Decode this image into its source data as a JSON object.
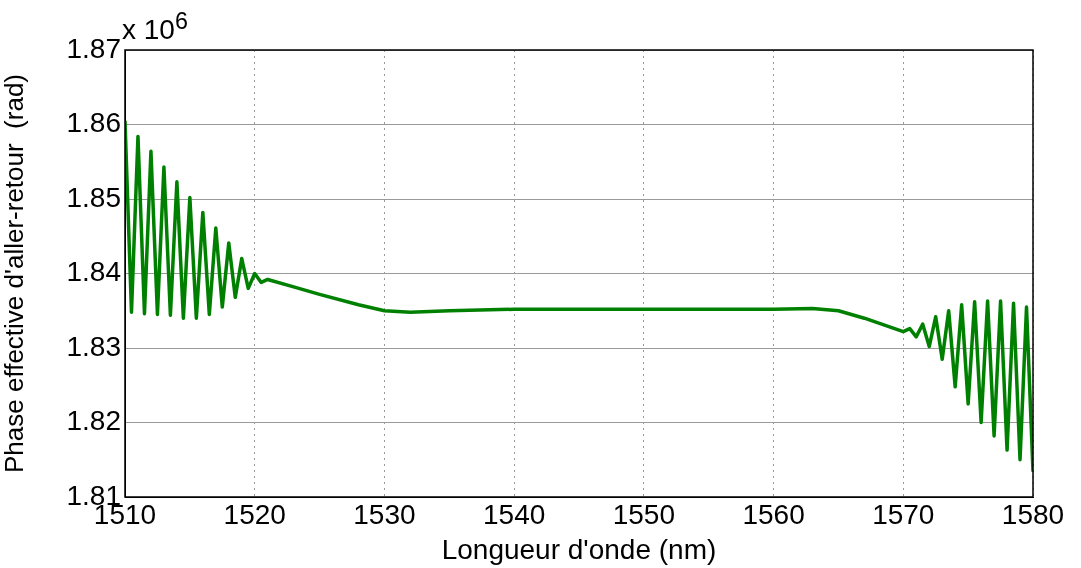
{
  "chart_data": {
    "type": "line",
    "xlabel": "Longueur d'onde (nm)",
    "ylabel": "Phase effective d'aller-retour  (rad)",
    "annotations": [
      "x 10$^{6}$"
    ],
    "xlim": [
      1510,
      1580
    ],
    "xticks": [
      1510,
      1520,
      1530,
      1540,
      1550,
      1560,
      1570,
      1580
    ],
    "ylim": [
      1.81,
      1.87
    ],
    "yticks": [
      1.81,
      1.82,
      1.83,
      1.84,
      1.85,
      1.86,
      1.87
    ],
    "grid": true,
    "legend": false,
    "marker": "none",
    "line_style": "solid",
    "x": [
      1510,
      1510.5,
      1511,
      1511.5,
      1512,
      1512.5,
      1513,
      1513.5,
      1514,
      1514.5,
      1515,
      1515.5,
      1516,
      1516.5,
      1517,
      1517.5,
      1518,
      1518.5,
      1519,
      1519.5,
      1520,
      1520.5,
      1521,
      1523,
      1525,
      1528,
      1530,
      1532,
      1535,
      1540,
      1550,
      1560,
      1563,
      1565,
      1567,
      1569,
      1570,
      1570.5,
      1571,
      1571.5,
      1572,
      1572.5,
      1573,
      1573.5,
      1574,
      1574.5,
      1575,
      1575.5,
      1576,
      1576.5,
      1577,
      1577.5,
      1578,
      1578.5,
      1579,
      1579.5,
      1580
    ],
    "series": [
      {
        "color": "#008000",
        "values": [
          1.8605,
          1.8348,
          1.8584,
          1.8346,
          1.8564,
          1.8345,
          1.8543,
          1.8344,
          1.8523,
          1.834,
          1.8502,
          1.834,
          1.8482,
          1.8345,
          1.8461,
          1.8355,
          1.8441,
          1.8368,
          1.842,
          1.838,
          1.84,
          1.8388,
          1.8392,
          1.8382,
          1.8372,
          1.8358,
          1.835,
          1.8348,
          1.835,
          1.8352,
          1.8352,
          1.8352,
          1.8353,
          1.835,
          1.834,
          1.8328,
          1.8322,
          1.8326,
          1.8315,
          1.8332,
          1.8302,
          1.8342,
          1.8285,
          1.835,
          1.8248,
          1.8358,
          1.8225,
          1.8362,
          1.82,
          1.8363,
          1.8182,
          1.8363,
          1.8163,
          1.836,
          1.815,
          1.8355,
          1.8134
        ]
      }
    ]
  }
}
